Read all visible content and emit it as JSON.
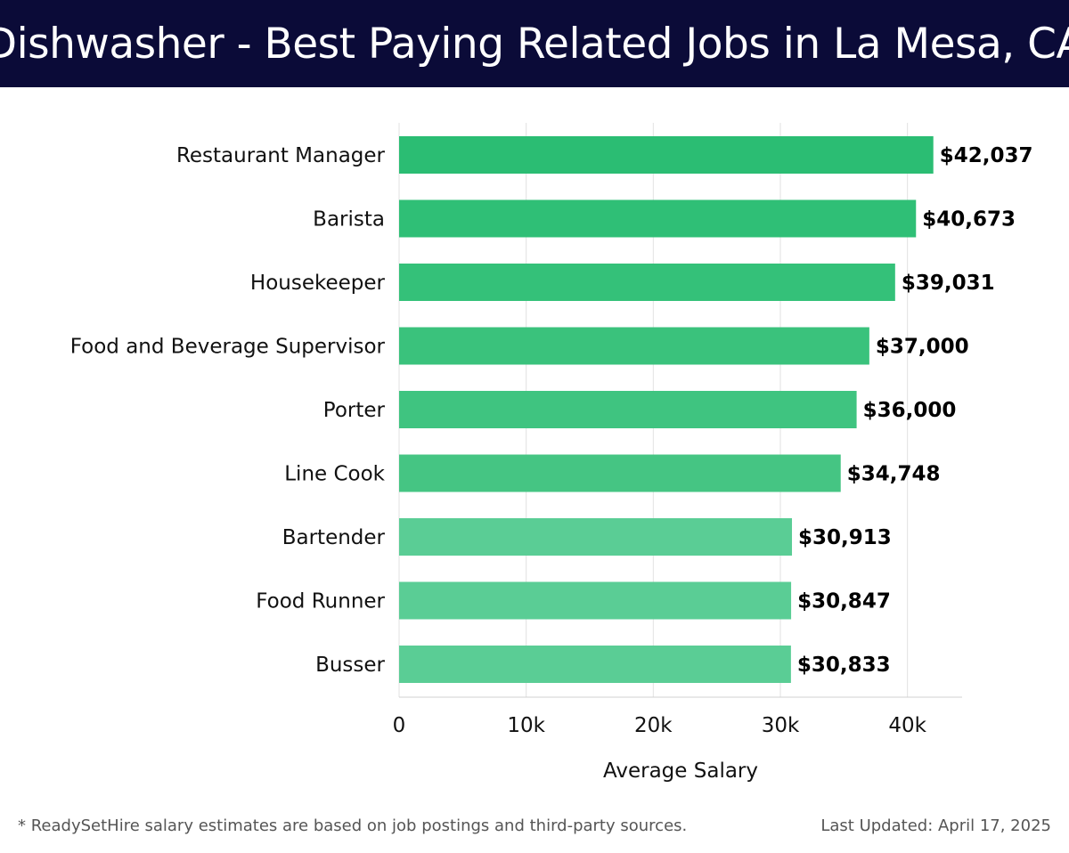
{
  "header": {
    "title": "Dishwasher - Best Paying Related Jobs in La Mesa, CA"
  },
  "chart_data": {
    "type": "bar",
    "orientation": "horizontal",
    "title": "Dishwasher - Best Paying Related Jobs in La Mesa, CA",
    "xlabel": "Average Salary",
    "ylabel": "",
    "categories": [
      "Restaurant Manager",
      "Barista",
      "Housekeeper",
      "Food and Beverage Supervisor",
      "Porter",
      "Line Cook",
      "Bartender",
      "Food Runner",
      "Busser"
    ],
    "values": [
      42037,
      40673,
      39031,
      37000,
      36000,
      34748,
      30913,
      30847,
      30833
    ],
    "value_labels": [
      "$42,037",
      "$40,673",
      "$39,031",
      "$37,000",
      "$36,000",
      "$34,748",
      "$30,913",
      "$30,847",
      "$30,833"
    ],
    "xlim": [
      0,
      44300
    ],
    "xticks": [
      0,
      10000,
      20000,
      30000,
      40000
    ],
    "xtick_labels": [
      "0",
      "10k",
      "20k",
      "30k",
      "40k"
    ],
    "grid": true,
    "bar_colors": [
      "#2bbd73",
      "#2fbf76",
      "#34c179",
      "#3ac27c",
      "#3fc480",
      "#45c583",
      "#5acd95",
      "#5acd95",
      "#5acd95"
    ]
  },
  "footer": {
    "note": "* ReadySetHire salary estimates are based on job postings and third-party sources.",
    "updated": "Last Updated: April 17, 2025"
  }
}
